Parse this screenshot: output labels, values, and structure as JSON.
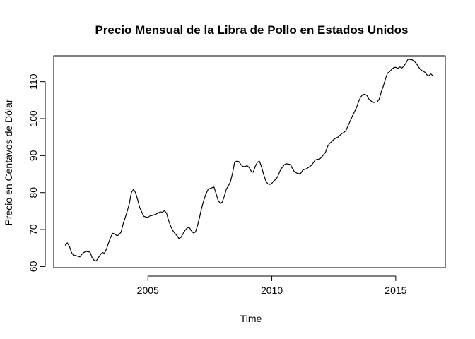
{
  "chart_data": {
    "type": "line",
    "title": "Precio Mensual de la Libra de Pollo en Estados Unidos",
    "xlabel": "Time",
    "ylabel": "Precio en Centavos de Dólar",
    "xlim": [
      2001.2,
      2017.0
    ],
    "ylim": [
      59.7,
      117.0
    ],
    "x_ticks": [
      2005,
      2010,
      2015
    ],
    "x_tick_labels": [
      "2005",
      "2010",
      "2015"
    ],
    "y_ticks": [
      60,
      70,
      80,
      90,
      100,
      110
    ],
    "y_tick_labels": [
      "60",
      "70",
      "80",
      "90",
      "100",
      "110"
    ],
    "grid": false,
    "legend": "none",
    "series": [
      {
        "x": [
          2001.667,
          2001.75,
          2001.833,
          2001.917,
          2002.0,
          2002.083,
          2002.167,
          2002.25,
          2002.333,
          2002.417,
          2002.5,
          2002.583,
          2002.667,
          2002.75,
          2002.833,
          2002.917,
          2003.0,
          2003.083,
          2003.167,
          2003.25,
          2003.333,
          2003.417,
          2003.5,
          2003.583,
          2003.667,
          2003.75,
          2003.833,
          2003.917,
          2004.0,
          2004.083,
          2004.167,
          2004.25,
          2004.333,
          2004.417,
          2004.5,
          2004.583,
          2004.667,
          2004.75,
          2004.833,
          2004.917,
          2005.0,
          2005.083,
          2005.167,
          2005.25,
          2005.333,
          2005.417,
          2005.5,
          2005.583,
          2005.667,
          2005.75,
          2005.833,
          2005.917,
          2006.0,
          2006.083,
          2006.167,
          2006.25,
          2006.333,
          2006.417,
          2006.5,
          2006.583,
          2006.667,
          2006.75,
          2006.833,
          2006.917,
          2007.0,
          2007.083,
          2007.167,
          2007.25,
          2007.333,
          2007.417,
          2007.5,
          2007.583,
          2007.667,
          2007.75,
          2007.833,
          2007.917,
          2008.0,
          2008.083,
          2008.167,
          2008.25,
          2008.333,
          2008.417,
          2008.5,
          2008.583,
          2008.667,
          2008.75,
          2008.833,
          2008.917,
          2009.0,
          2009.083,
          2009.167,
          2009.25,
          2009.333,
          2009.417,
          2009.5,
          2009.583,
          2009.667,
          2009.75,
          2009.833,
          2009.917,
          2010.0,
          2010.083,
          2010.167,
          2010.25,
          2010.333,
          2010.417,
          2010.5,
          2010.583,
          2010.667,
          2010.75,
          2010.833,
          2010.917,
          2011.0,
          2011.083,
          2011.167,
          2011.25,
          2011.333,
          2011.417,
          2011.5,
          2011.583,
          2011.667,
          2011.75,
          2011.833,
          2011.917,
          2012.0,
          2012.083,
          2012.167,
          2012.25,
          2012.333,
          2012.417,
          2012.5,
          2012.583,
          2012.667,
          2012.75,
          2012.833,
          2012.917,
          2013.0,
          2013.083,
          2013.167,
          2013.25,
          2013.333,
          2013.417,
          2013.5,
          2013.583,
          2013.667,
          2013.75,
          2013.833,
          2013.917,
          2014.0,
          2014.083,
          2014.167,
          2014.25,
          2014.333,
          2014.417,
          2014.5,
          2014.583,
          2014.667,
          2014.75,
          2014.833,
          2014.917,
          2015.0,
          2015.083,
          2015.167,
          2015.25,
          2015.333,
          2015.417,
          2015.5,
          2015.583,
          2015.667,
          2015.75,
          2015.833,
          2015.917,
          2016.0,
          2016.083,
          2016.167,
          2016.25,
          2016.333,
          2016.417,
          2016.5
        ],
        "values": [
          65.8,
          66.4,
          65.5,
          63.8,
          63.0,
          63.0,
          62.8,
          62.6,
          63.3,
          63.8,
          64.1,
          64.0,
          63.9,
          62.4,
          61.7,
          61.5,
          62.4,
          63.2,
          63.8,
          63.6,
          64.8,
          66.5,
          68.0,
          69.0,
          68.8,
          68.3,
          68.6,
          69.3,
          71.5,
          73.2,
          75.0,
          77.0,
          80.0,
          80.9,
          80.0,
          78.2,
          76.0,
          74.8,
          73.6,
          73.4,
          73.3,
          73.7,
          73.8,
          74.0,
          74.2,
          74.5,
          74.8,
          74.7,
          75.1,
          74.5,
          72.5,
          71.0,
          69.8,
          69.0,
          68.4,
          67.6,
          67.9,
          68.9,
          69.8,
          70.4,
          70.6,
          69.7,
          69.1,
          69.3,
          71.0,
          73.3,
          75.8,
          77.8,
          79.5,
          80.7,
          81.1,
          81.3,
          81.5,
          79.8,
          77.9,
          77.1,
          77.4,
          79.0,
          81.0,
          81.8,
          83.0,
          85.3,
          88.2,
          88.5,
          88.4,
          87.6,
          87.1,
          87.0,
          87.3,
          86.8,
          85.8,
          85.5,
          87.1,
          88.2,
          88.5,
          87.0,
          85.0,
          83.3,
          82.4,
          82.2,
          82.5,
          83.2,
          83.6,
          84.5,
          85.9,
          86.8,
          87.5,
          87.8,
          87.7,
          87.6,
          86.5,
          85.6,
          85.3,
          85.1,
          85.2,
          86.1,
          86.3,
          86.5,
          86.9,
          87.3,
          88.0,
          88.8,
          89.0,
          89.0,
          89.5,
          90.2,
          90.9,
          92.5,
          93.3,
          93.8,
          94.4,
          94.7,
          95.0,
          95.5,
          96.0,
          96.3,
          96.9,
          98.2,
          99.4,
          100.7,
          101.8,
          103.0,
          104.6,
          105.8,
          106.5,
          106.6,
          106.3,
          105.3,
          104.8,
          104.3,
          104.5,
          104.5,
          105.3,
          107.3,
          108.8,
          110.7,
          112.3,
          112.7,
          113.3,
          113.8,
          113.9,
          113.6,
          114.0,
          113.7,
          114.3,
          115.1,
          116.1,
          116.0,
          115.9,
          115.5,
          114.9,
          114.0,
          113.3,
          112.9,
          112.6,
          111.9,
          111.6,
          112.1,
          111.6
        ]
      }
    ]
  }
}
